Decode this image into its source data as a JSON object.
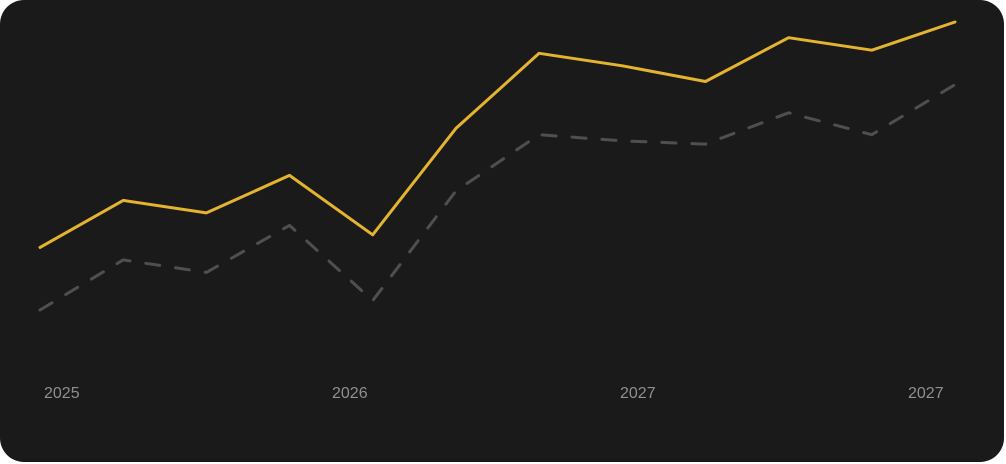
{
  "chart_data": {
    "type": "line",
    "title": "",
    "xlabel": "",
    "ylabel": "",
    "grid": false,
    "legend": "none",
    "x_tick_labels": [
      "2025",
      "2026",
      "2027",
      "2027"
    ],
    "ylim": [
      0,
      100
    ],
    "series": [
      {
        "style": "solid",
        "color": "#e4b32f",
        "values": [
          28,
          43,
          39,
          51,
          32,
          66,
          90,
          86,
          81,
          95,
          91,
          100
        ]
      },
      {
        "style": "dashed",
        "color": "#4f4f4f",
        "values": [
          8,
          24,
          20,
          35,
          11,
          46,
          64,
          62,
          61,
          71,
          64,
          80
        ]
      }
    ]
  }
}
